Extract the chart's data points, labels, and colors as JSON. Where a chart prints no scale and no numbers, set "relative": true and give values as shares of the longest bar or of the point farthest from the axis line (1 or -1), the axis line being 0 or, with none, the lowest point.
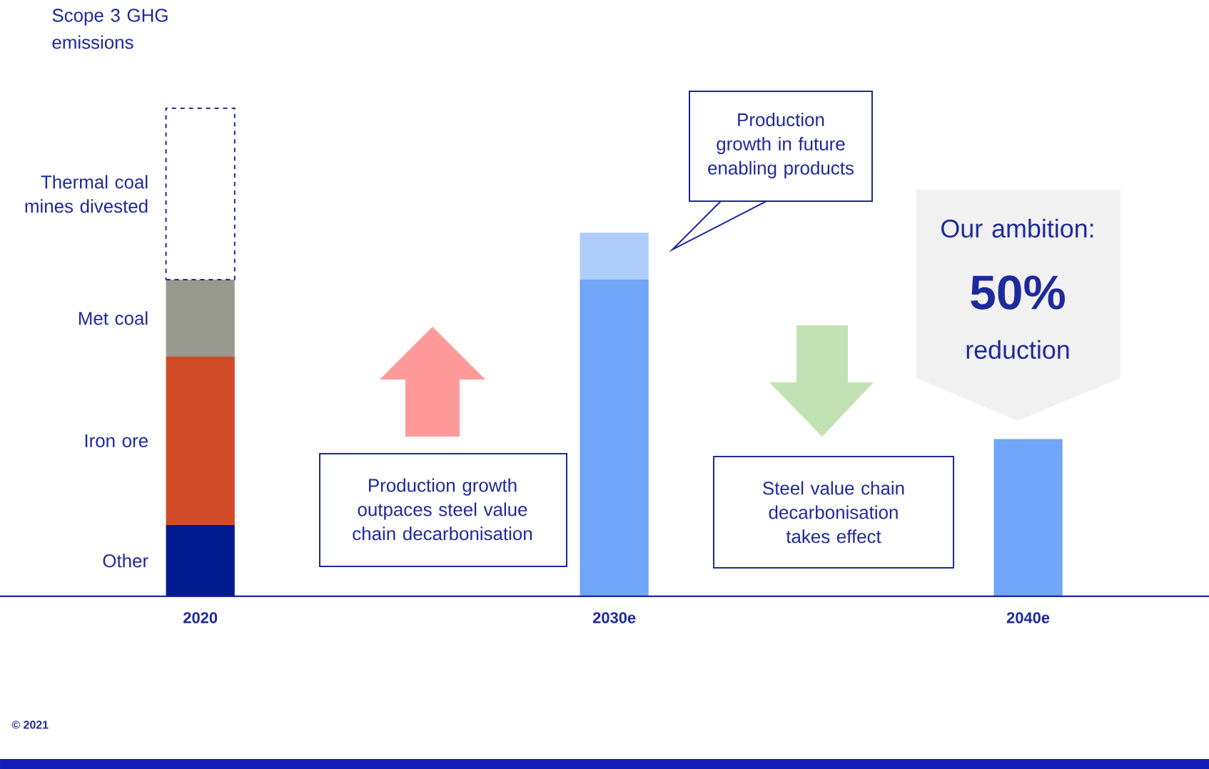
{
  "chart_data": {
    "type": "bar",
    "relative": true,
    "stacked": true,
    "ylabel": "Scope 3 GHG emissions",
    "categories": [
      "2020",
      "2030e",
      "2040e"
    ],
    "series": [
      {
        "name": "Other",
        "color": "#021a8f",
        "values": [
          0.146,
          null,
          null
        ]
      },
      {
        "name": "Iron ore",
        "color": "#d24b28",
        "values": [
          0.345,
          null,
          null
        ]
      },
      {
        "name": "Met coal",
        "color": "#999a8e",
        "values": [
          0.158,
          null,
          null
        ]
      },
      {
        "name": "Thermal coal mines divested",
        "color": "#ffffff",
        "line_style": "dashed",
        "values": [
          0.351,
          null,
          null
        ]
      },
      {
        "color": "#70a5f7",
        "values": [
          null,
          0.649,
          0.322
        ]
      },
      {
        "color": "#afcdfa",
        "values": [
          null,
          0.096,
          null
        ]
      }
    ],
    "annotations": [
      "Production growth outpaces steel value chain decarbonisation",
      "Production growth in future enabling products",
      "Steel value chain decarbonisation takes effect",
      "Our ambition:",
      "50%",
      "reduction",
      "© 2021"
    ]
  }
}
